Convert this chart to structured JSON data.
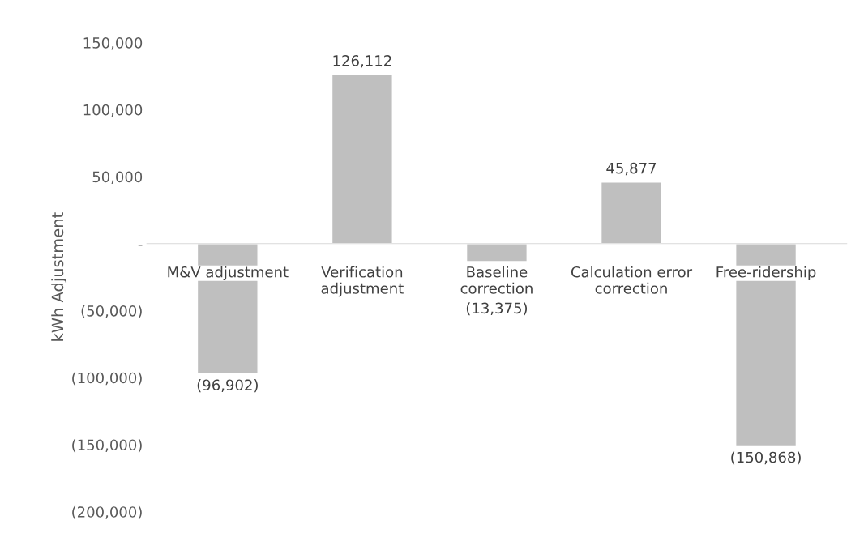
{
  "chart_data": {
    "type": "bar",
    "ylabel": "kWh Adjustment",
    "categories": [
      "M&V adjustment",
      "Verification\nadjustment",
      "Baseline\ncorrection",
      "Calculation error\ncorrection",
      "Free-ridership"
    ],
    "values": [
      -96902,
      126112,
      -13375,
      45877,
      -150868
    ],
    "value_labels": [
      "(96,902)",
      "126,112",
      "(13,375)",
      "45,877",
      "(150,868)"
    ],
    "color": "#bfbfbf",
    "ylim": [
      -200000,
      150000
    ],
    "yticks": [
      {
        "value": 150000,
        "label": "150,000"
      },
      {
        "value": 100000,
        "label": "100,000"
      },
      {
        "value": 50000,
        "label": "50,000"
      },
      {
        "value": 0,
        "label": "-"
      },
      {
        "value": -50000,
        "label": "(50,000)"
      },
      {
        "value": -100000,
        "label": "(100,000)"
      },
      {
        "value": -150000,
        "label": "(150,000)"
      },
      {
        "value": -200000,
        "label": "(200,000)"
      }
    ],
    "grid": false,
    "legend": false
  }
}
